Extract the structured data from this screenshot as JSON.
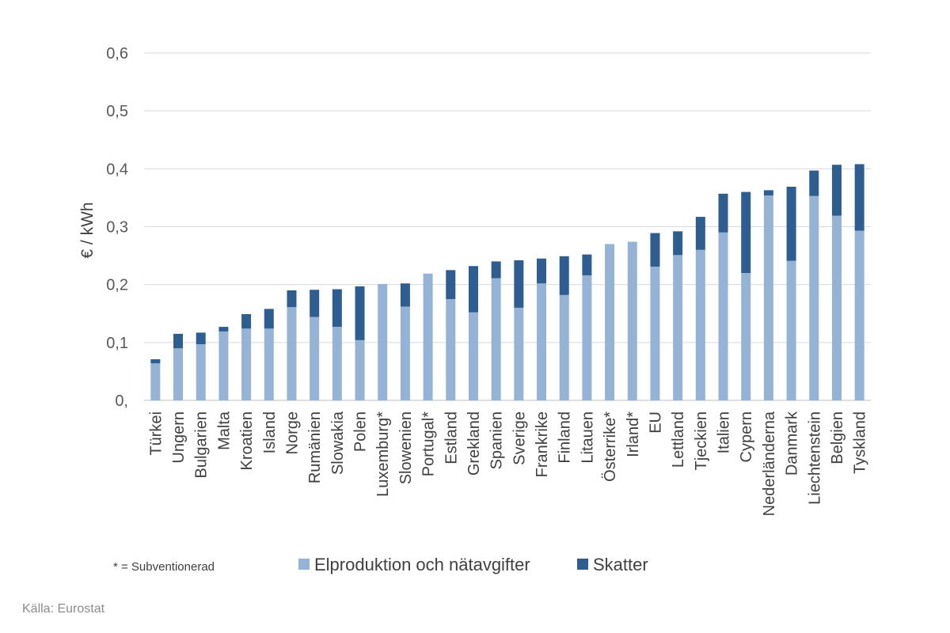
{
  "chart_data": {
    "type": "bar",
    "stacked": true,
    "ylabel": "€ / kWh",
    "ylim": [
      0,
      0.6
    ],
    "y_ticks": [
      "0,",
      "0,1",
      "0,2",
      "0,3",
      "0,4",
      "0,5",
      "0,6"
    ],
    "grid": true,
    "categories": [
      "Türkei",
      "Ungern",
      "Bulgarien",
      "Malta",
      "Kroatien",
      "Island",
      "Norge",
      "Rumänien",
      "Slowakia",
      "Polen",
      "Luxemburg*",
      "Slowenien",
      "Portugal*",
      "Estland",
      "Grekland",
      "Spanien",
      "Sverige",
      "Frankrike",
      "Finland",
      "Litauen",
      "Österrike*",
      "Irland*",
      "EU",
      "Lettland",
      "Tjeckien",
      "Italien",
      "Cypern",
      "Nederländerna",
      "Danmark",
      "Liechtenstein",
      "Belgien",
      "Tyskland"
    ],
    "series": [
      {
        "name": "Elproduktion och nätavgifter",
        "color": "#95b3d7",
        "values": [
          0.064,
          0.09,
          0.097,
          0.119,
          0.124,
          0.124,
          0.161,
          0.144,
          0.127,
          0.104,
          0.201,
          0.162,
          0.219,
          0.175,
          0.152,
          0.211,
          0.16,
          0.202,
          0.182,
          0.216,
          0.27,
          0.274,
          0.231,
          0.251,
          0.26,
          0.29,
          0.22,
          0.354,
          0.241,
          0.353,
          0.319,
          0.293
        ]
      },
      {
        "name": "Skatter",
        "color": "#2e5d92",
        "values": [
          0.007,
          0.025,
          0.02,
          0.008,
          0.025,
          0.034,
          0.029,
          0.047,
          0.065,
          0.093,
          0,
          0.04,
          0,
          0.05,
          0.08,
          0.029,
          0.082,
          0.043,
          0.067,
          0.036,
          0,
          0,
          0.058,
          0.041,
          0.057,
          0.067,
          0.14,
          0.009,
          0.128,
          0.044,
          0.088,
          0.115
        ]
      }
    ],
    "legend_position": "bottom"
  },
  "footnote": "* = Subventionerad",
  "source": "Källa: Eurostat"
}
